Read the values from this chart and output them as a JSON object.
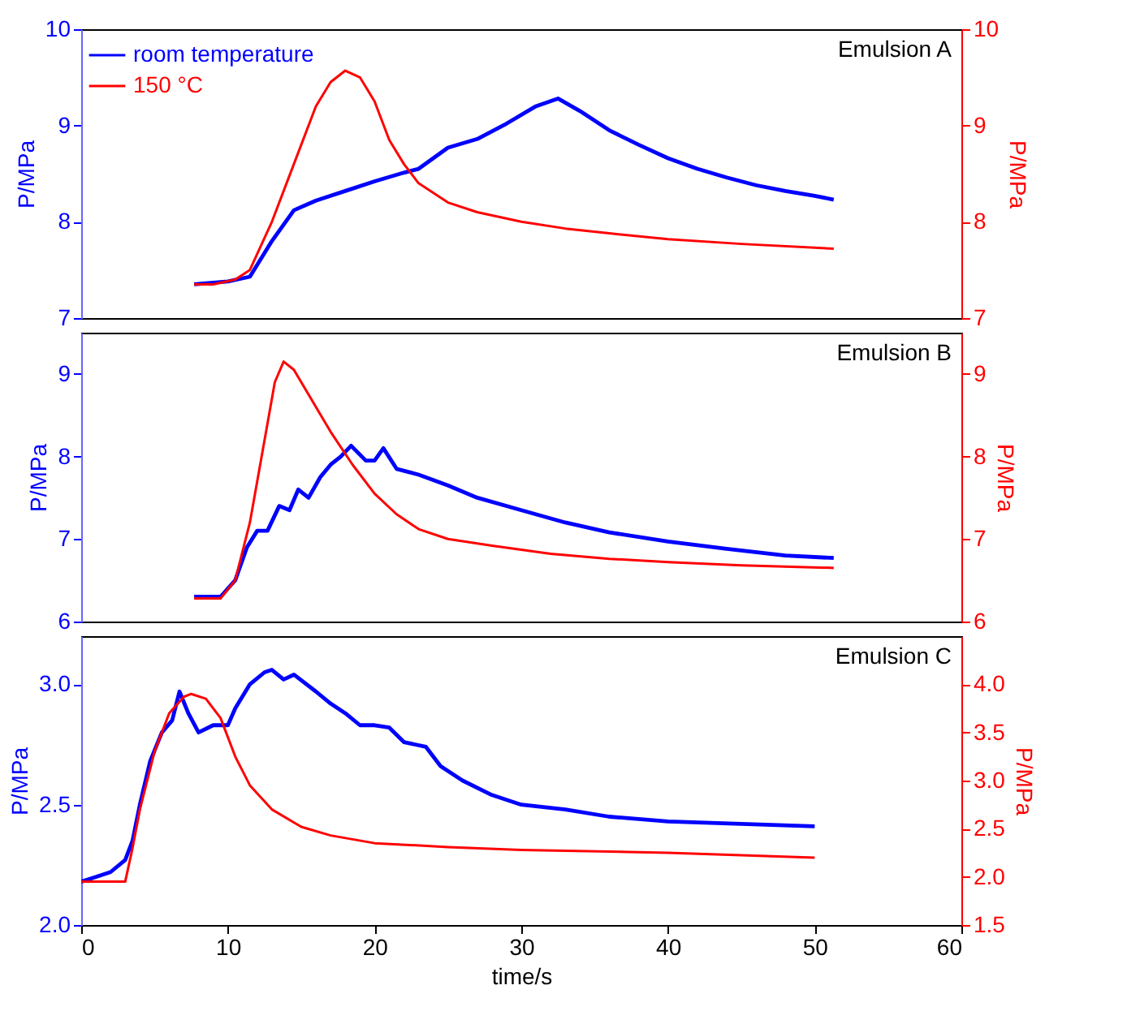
{
  "chart_data": [
    {
      "type": "line",
      "annotations": [
        "Emulsion A"
      ],
      "ylabel": "P/MPa",
      "y2label": "P/MPa",
      "legend": "top left",
      "tick_labels": "y",
      "xlim": [
        0,
        60
      ],
      "xticks": [
        0,
        10,
        20,
        30,
        40,
        50,
        60
      ],
      "ylim": [
        7,
        10
      ],
      "yticks": [
        7,
        8,
        9,
        10
      ],
      "y2lim": [
        7,
        10
      ],
      "y2ticks": [
        7,
        8,
        9,
        10
      ],
      "series": [
        {
          "name": "room temperature",
          "color": "#0000ff",
          "x": [
            7.7,
            10,
            11.5,
            13,
            14.5,
            16,
            18,
            20,
            22,
            23,
            25,
            27,
            29,
            31,
            32.5,
            34,
            36,
            38,
            40,
            42,
            44,
            46,
            48,
            50,
            51.3
          ],
          "values": [
            7.35,
            7.38,
            7.43,
            7.8,
            8.12,
            8.22,
            8.32,
            8.42,
            8.51,
            8.55,
            8.77,
            8.86,
            9.02,
            9.2,
            9.28,
            9.15,
            8.95,
            8.8,
            8.66,
            8.55,
            8.46,
            8.38,
            8.32,
            8.27,
            8.23
          ]
        },
        {
          "name": "150 °C",
          "color": "#ff0000",
          "axis": "y2",
          "x": [
            7.7,
            9,
            10.5,
            11.5,
            13,
            14.5,
            16,
            17,
            18,
            19,
            20,
            21,
            22,
            23,
            25,
            27,
            30,
            33,
            36,
            40,
            45,
            51.3
          ],
          "values": [
            7.35,
            7.35,
            7.4,
            7.5,
            8.0,
            8.6,
            9.2,
            9.45,
            9.57,
            9.5,
            9.25,
            8.85,
            8.6,
            8.4,
            8.2,
            8.1,
            8.0,
            7.93,
            7.88,
            7.82,
            7.77,
            7.72
          ]
        }
      ]
    },
    {
      "type": "line",
      "annotations": [
        "Emulsion B"
      ],
      "ylabel": "P/MPa",
      "y2label": "P/MPa",
      "tick_labels": "y",
      "xlim": [
        0,
        60
      ],
      "xticks": [
        0,
        10,
        20,
        30,
        40,
        50,
        60
      ],
      "ylim": [
        6,
        9.5
      ],
      "yticks": [
        6,
        7,
        8,
        9
      ],
      "y2lim": [
        6,
        9.5
      ],
      "y2ticks": [
        6,
        7,
        8,
        9
      ],
      "series": [
        {
          "color": "#0000ff",
          "x": [
            7.7,
            9.5,
            10.5,
            11.3,
            12,
            12.7,
            13.5,
            14.2,
            14.8,
            15.5,
            16.3,
            17,
            17.7,
            18.4,
            19.4,
            20,
            20.6,
            21.5,
            23,
            25,
            27,
            30,
            33,
            36,
            40,
            44,
            48,
            51.3
          ],
          "values": [
            6.3,
            6.3,
            6.5,
            6.9,
            7.1,
            7.1,
            7.4,
            7.35,
            7.6,
            7.5,
            7.75,
            7.9,
            8.0,
            8.13,
            7.95,
            7.95,
            8.1,
            7.85,
            7.78,
            7.65,
            7.5,
            7.35,
            7.2,
            7.08,
            6.97,
            6.88,
            6.8,
            6.77
          ]
        },
        {
          "color": "#ff0000",
          "axis": "y2",
          "x": [
            7.7,
            9.5,
            10.5,
            11.5,
            12.5,
            13.2,
            13.8,
            14.5,
            15.5,
            17,
            18.5,
            20,
            21.5,
            23,
            25,
            28,
            32,
            36,
            40,
            45,
            51.3
          ],
          "values": [
            6.28,
            6.28,
            6.5,
            7.2,
            8.2,
            8.9,
            9.15,
            9.05,
            8.75,
            8.3,
            7.9,
            7.55,
            7.3,
            7.12,
            7.0,
            6.92,
            6.82,
            6.76,
            6.72,
            6.68,
            6.65
          ]
        }
      ]
    },
    {
      "type": "line",
      "annotations": [
        "Emulsion C"
      ],
      "xlabel": "time/s",
      "ylabel": "P/MPa",
      "y2label": "P/MPa",
      "xlim": [
        0,
        60
      ],
      "xticks": [
        0,
        10,
        20,
        30,
        40,
        50,
        60
      ],
      "ylim": [
        2,
        3.2
      ],
      "yticks": [
        {
          "value": 2,
          "label": "2.0"
        },
        2.5,
        {
          "value": 3,
          "label": "3.0"
        }
      ],
      "y2lim": [
        1.5,
        4.5
      ],
      "y2ticks": [
        1.5,
        {
          "value": 2,
          "label": "2.0"
        },
        2.5,
        {
          "value": 3,
          "label": "3.0"
        },
        3.5,
        {
          "value": 4,
          "label": "4.0"
        }
      ],
      "series": [
        {
          "color": "#0000ff",
          "x": [
            0,
            1,
            2,
            3,
            3.5,
            4,
            4.7,
            5.5,
            6.2,
            6.7,
            7.3,
            8,
            9,
            10,
            10.5,
            11.5,
            12.5,
            13,
            13.8,
            14.5,
            16,
            17,
            18,
            19,
            20,
            21,
            22,
            23.5,
            24.5,
            26,
            28,
            30,
            33,
            36,
            40,
            45,
            50
          ],
          "values": [
            2.18,
            2.2,
            2.22,
            2.27,
            2.35,
            2.5,
            2.68,
            2.8,
            2.85,
            2.97,
            2.88,
            2.8,
            2.83,
            2.83,
            2.9,
            3.0,
            3.05,
            3.06,
            3.02,
            3.04,
            2.97,
            2.92,
            2.88,
            2.83,
            2.83,
            2.82,
            2.76,
            2.74,
            2.66,
            2.6,
            2.54,
            2.5,
            2.48,
            2.45,
            2.43,
            2.42,
            2.41
          ]
        },
        {
          "color": "#ff0000",
          "axis": "y2",
          "x": [
            0,
            3,
            3.5,
            4,
            5,
            6,
            7,
            7.5,
            8.5,
            9.5,
            10.5,
            11.5,
            13,
            15,
            17,
            20,
            25,
            30,
            40,
            50
          ],
          "values": [
            1.95,
            1.95,
            2.3,
            2.7,
            3.3,
            3.7,
            3.87,
            3.9,
            3.85,
            3.65,
            3.25,
            2.95,
            2.7,
            2.52,
            2.43,
            2.35,
            2.31,
            2.28,
            2.25,
            2.2
          ]
        }
      ]
    }
  ]
}
